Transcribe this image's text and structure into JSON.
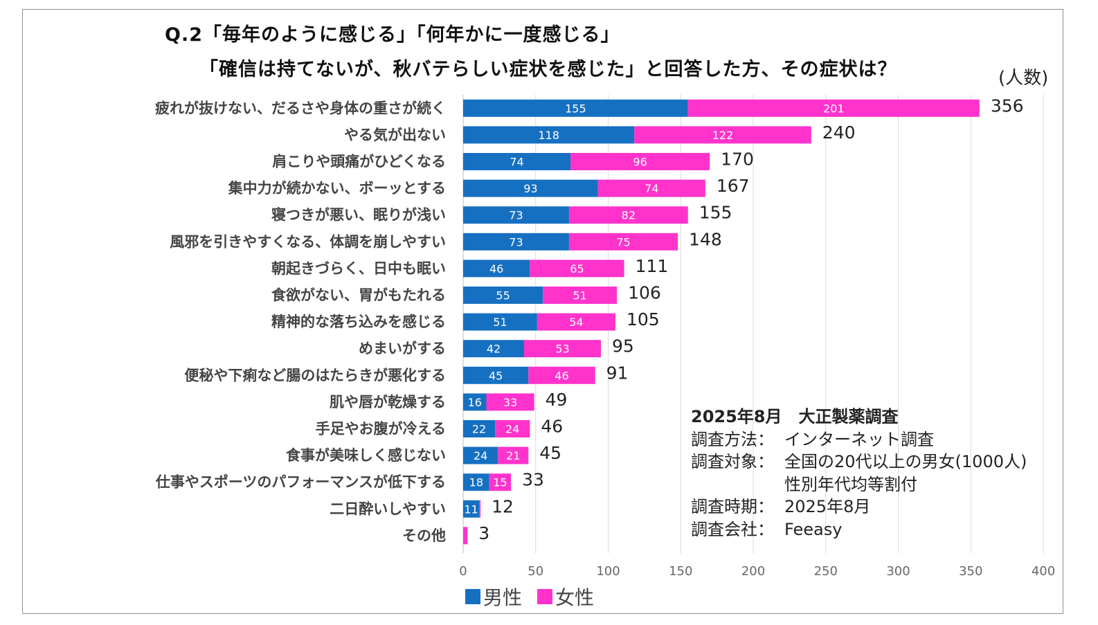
{
  "title": {
    "line1": "Q.2「毎年のように感じる」「何年かに一度感じる」",
    "line2": "「確信は持てないが、秋バテらしい症状を感じた」と回答した方、その症状は？"
  },
  "unit_label": "(人数)",
  "colors": {
    "male": "#1670c2",
    "female": "#ff33cc"
  },
  "chart_data": {
    "type": "bar",
    "orientation": "horizontal",
    "stacked": true,
    "categories": [
      "疲れが抜けない、だるさや身体の重さが続く",
      "やる気が出ない",
      "肩こりや頭痛がひどくなる",
      "集中力が続かない、ボーッとする",
      "寝つきが悪い、眠りが浅い",
      "風邪を引きやすくなる、体調を崩しやすい",
      "朝起きづらく、日中も眠い",
      "食欲がない、胃がもたれる",
      "精神的な落ち込みを感じる",
      "めまいがする",
      "便秘や下痢など腸のはたらきが悪化する",
      "肌や唇が乾燥する",
      "手足やお腹が冷える",
      "食事が美味しく感じない",
      "仕事やスポーツのパフォーマンスが低下する",
      "二日酔いしやすい",
      "その他"
    ],
    "series": [
      {
        "name": "男性",
        "values": [
          155,
          118,
          74,
          93,
          73,
          73,
          46,
          55,
          51,
          42,
          45,
          16,
          22,
          24,
          18,
          11,
          0
        ]
      },
      {
        "name": "女性",
        "values": [
          201,
          122,
          96,
          74,
          82,
          75,
          65,
          51,
          54,
          53,
          46,
          33,
          24,
          21,
          15,
          1,
          3
        ]
      }
    ],
    "totals": [
      356,
      240,
      170,
      167,
      155,
      148,
      111,
      106,
      105,
      95,
      91,
      49,
      46,
      45,
      33,
      12,
      3
    ],
    "xlim": [
      0,
      400
    ],
    "xticks": [
      0,
      50,
      100,
      150,
      200,
      250,
      300,
      350,
      400
    ],
    "grid": true,
    "legend_position": "bottom"
  },
  "notes": {
    "heading": "2025年8月　大正製薬調査",
    "rows": [
      {
        "key": "調査方法：",
        "value": "インターネット調査"
      },
      {
        "key": "調査対象：",
        "value": "全国の20代以上の男女(1000人)"
      },
      {
        "key": "",
        "value": "性別年代均等割付"
      },
      {
        "key": "調査時期：",
        "value": "2025年8月"
      },
      {
        "key": "調査会社：",
        "value": "Feeasy"
      }
    ]
  }
}
